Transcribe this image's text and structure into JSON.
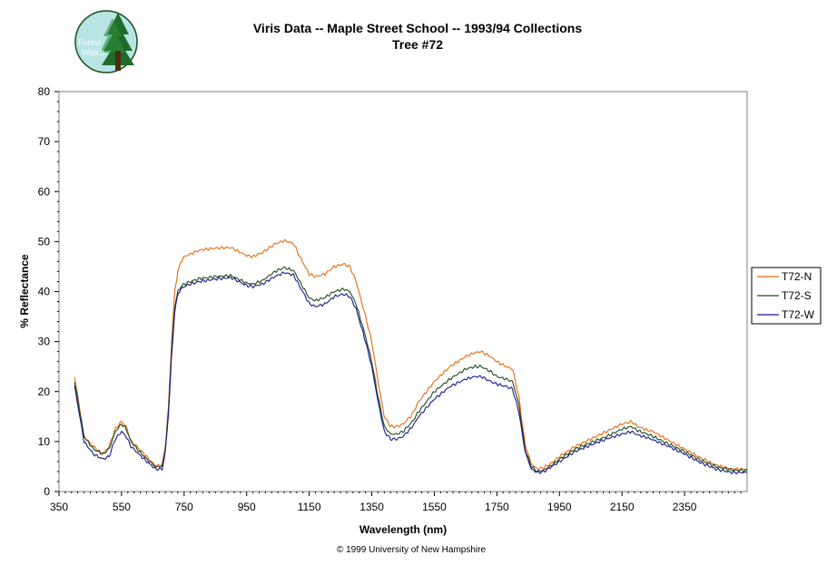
{
  "chart_data": {
    "type": "line",
    "title": "Viris Data -- Maple Street School -- 1993/94 Collections",
    "subtitle": "Tree #72",
    "xlabel": "Wavelength (nm)",
    "ylabel": "% Reflectance",
    "xlim": [
      350,
      2550
    ],
    "ylim": [
      0,
      80
    ],
    "x_ticks": [
      350,
      550,
      750,
      950,
      1150,
      1350,
      1550,
      1750,
      1950,
      2150,
      2350
    ],
    "y_ticks": [
      0,
      10,
      20,
      30,
      40,
      50,
      60,
      70,
      80
    ],
    "grid": false,
    "legend_position": "right",
    "x": [
      400,
      430,
      460,
      490,
      510,
      530,
      550,
      565,
      580,
      600,
      630,
      660,
      680,
      690,
      700,
      710,
      720,
      730,
      740,
      750,
      770,
      800,
      850,
      900,
      950,
      970,
      1000,
      1040,
      1070,
      1100,
      1120,
      1150,
      1170,
      1200,
      1230,
      1260,
      1280,
      1300,
      1330,
      1350,
      1370,
      1390,
      1410,
      1430,
      1450,
      1480,
      1500,
      1550,
      1600,
      1650,
      1680,
      1700,
      1730,
      1750,
      1780,
      1800,
      1820,
      1840,
      1860,
      1880,
      1900,
      1920,
      1950,
      2000,
      2050,
      2100,
      2150,
      2180,
      2200,
      2230,
      2250,
      2300,
      2350,
      2400,
      2450,
      2500,
      2550
    ],
    "series": [
      {
        "name": "T72-N",
        "color": "#e86a10",
        "values": [
          23,
          11,
          9,
          7.5,
          9,
          12.5,
          14,
          13,
          10,
          9,
          7,
          5,
          5.5,
          9,
          17,
          30,
          40,
          44,
          46,
          47,
          47.5,
          48.3,
          48.7,
          48.8,
          47.2,
          47,
          47.8,
          49.5,
          50.2,
          49.6,
          47,
          43.5,
          43,
          43.5,
          45,
          45.5,
          45,
          42,
          35,
          30,
          22,
          15,
          13,
          13,
          13.5,
          15.5,
          18,
          22,
          25,
          27,
          27.8,
          28,
          27,
          26,
          25,
          24.5,
          19,
          9.5,
          5.5,
          4.5,
          4.8,
          5.5,
          7,
          9,
          10.5,
          12,
          13.5,
          14,
          13,
          12.3,
          12,
          10.2,
          8.5,
          6.8,
          5.3,
          4.5,
          4.5
        ]
      },
      {
        "name": "T72-S",
        "color": "#1e4a1e",
        "values": [
          22,
          11,
          8.5,
          7.5,
          8.5,
          12,
          13.5,
          12.5,
          10,
          8.5,
          6.5,
          5,
          5,
          8.5,
          16,
          28,
          37,
          40,
          41,
          41.5,
          42,
          42.6,
          43,
          43.2,
          41.7,
          41.5,
          42.2,
          44,
          44.8,
          44.2,
          42,
          38.7,
          38.2,
          38.8,
          40,
          40.5,
          40,
          37.5,
          31,
          26,
          19,
          13,
          11.5,
          11.5,
          12,
          14,
          16,
          20,
          22.5,
          24.5,
          25,
          25,
          24,
          23,
          22.5,
          22,
          17.5,
          8.5,
          5,
          4,
          4.3,
          5,
          6.5,
          8.5,
          9.8,
          11,
          12.5,
          13,
          12.2,
          11.5,
          11,
          9.5,
          8,
          6.3,
          5,
          4.3,
          4.2
        ]
      },
      {
        "name": "T72-W",
        "color": "#1a1a8a",
        "values": [
          21,
          10,
          7.5,
          6.5,
          7,
          10.5,
          12,
          11,
          9,
          7.8,
          6,
          4.5,
          4.5,
          8,
          15.5,
          27,
          36,
          39.5,
          40.5,
          41,
          41.5,
          42,
          42.5,
          42.8,
          41.2,
          41,
          41.5,
          43,
          43.8,
          43.3,
          41,
          37.6,
          37,
          37.5,
          39,
          39.5,
          39,
          36.5,
          30,
          25,
          18,
          12,
          10.5,
          10.5,
          11,
          13,
          15,
          18.5,
          21,
          22.5,
          23,
          23,
          22,
          21.5,
          21,
          20.5,
          16,
          8,
          4.5,
          3.8,
          4,
          4.8,
          6,
          8,
          9.3,
          10.5,
          11.5,
          12,
          11.3,
          10.8,
          10.3,
          9,
          7.5,
          5.8,
          4.5,
          3.8,
          3.8
        ]
      }
    ]
  },
  "logo": {
    "line1": "Forest",
    "line2": "Watch",
    "circle_color": "#b8e4e4",
    "tree_color": "#1f6b2a"
  },
  "copyright": "© 1999 University of New Hampshire"
}
